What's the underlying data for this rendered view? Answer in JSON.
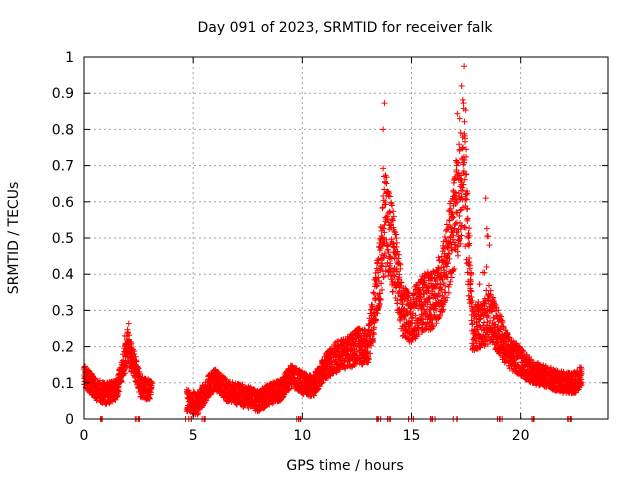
{
  "chart_data": {
    "type": "scatter",
    "title": "Day 091 of 2023, SRMTID for receiver falk",
    "xlabel": "GPS time / hours",
    "ylabel": "SRMTID / TECUs",
    "xlim": [
      0,
      24
    ],
    "ylim": [
      0,
      1
    ],
    "x_ticks": [
      0,
      5,
      10,
      15,
      20
    ],
    "x_tick_labels": [
      "0",
      "5",
      "10",
      "15",
      "20"
    ],
    "y_ticks": [
      0,
      0.1,
      0.2,
      0.3,
      0.4,
      0.5,
      0.6,
      0.7,
      0.8,
      0.9,
      1
    ],
    "y_tick_labels": [
      "0",
      "0.1",
      "0.2",
      "0.3",
      "0.4",
      "0.5",
      "0.6",
      "0.7",
      "0.8",
      "0.9",
      "1"
    ],
    "grid": true,
    "marker": "+",
    "series_color": "#ff0000",
    "series": [
      {
        "name": "SRMTID",
        "approximate_trend": [
          {
            "x": 0.0,
            "y": 0.12
          },
          {
            "x": 0.3,
            "y": 0.1
          },
          {
            "x": 0.6,
            "y": 0.08
          },
          {
            "x": 1.0,
            "y": 0.07
          },
          {
            "x": 1.5,
            "y": 0.08
          },
          {
            "x": 2.0,
            "y": 0.2
          },
          {
            "x": 2.3,
            "y": 0.15
          },
          {
            "x": 2.6,
            "y": 0.09
          },
          {
            "x": 3.0,
            "y": 0.08
          },
          {
            "x": 4.8,
            "y": 0.05
          },
          {
            "x": 5.2,
            "y": 0.04
          },
          {
            "x": 5.7,
            "y": 0.09
          },
          {
            "x": 6.0,
            "y": 0.11
          },
          {
            "x": 6.5,
            "y": 0.08
          },
          {
            "x": 7.0,
            "y": 0.07
          },
          {
            "x": 7.5,
            "y": 0.06
          },
          {
            "x": 8.0,
            "y": 0.05
          },
          {
            "x": 8.5,
            "y": 0.07
          },
          {
            "x": 9.0,
            "y": 0.08
          },
          {
            "x": 9.5,
            "y": 0.12
          },
          {
            "x": 10.0,
            "y": 0.1
          },
          {
            "x": 10.5,
            "y": 0.09
          },
          {
            "x": 11.0,
            "y": 0.14
          },
          {
            "x": 11.5,
            "y": 0.17
          },
          {
            "x": 12.0,
            "y": 0.18
          },
          {
            "x": 12.5,
            "y": 0.2
          },
          {
            "x": 13.0,
            "y": 0.2
          },
          {
            "x": 13.5,
            "y": 0.38
          },
          {
            "x": 13.8,
            "y": 0.55
          },
          {
            "x": 14.2,
            "y": 0.45
          },
          {
            "x": 14.6,
            "y": 0.3
          },
          {
            "x": 15.0,
            "y": 0.28
          },
          {
            "x": 15.5,
            "y": 0.32
          },
          {
            "x": 16.0,
            "y": 0.33
          },
          {
            "x": 16.5,
            "y": 0.4
          },
          {
            "x": 17.0,
            "y": 0.55
          },
          {
            "x": 17.4,
            "y": 0.7
          },
          {
            "x": 17.8,
            "y": 0.25
          },
          {
            "x": 18.2,
            "y": 0.26
          },
          {
            "x": 18.6,
            "y": 0.28
          },
          {
            "x": 19.0,
            "y": 0.24
          },
          {
            "x": 19.5,
            "y": 0.18
          },
          {
            "x": 20.0,
            "y": 0.16
          },
          {
            "x": 20.5,
            "y": 0.13
          },
          {
            "x": 21.0,
            "y": 0.12
          },
          {
            "x": 21.5,
            "y": 0.11
          },
          {
            "x": 22.0,
            "y": 0.1
          },
          {
            "x": 22.5,
            "y": 0.1
          },
          {
            "x": 22.8,
            "y": 0.12
          }
        ],
        "peaks": [
          {
            "x": 2.0,
            "y": 0.24
          },
          {
            "x": 13.7,
            "y": 0.8
          },
          {
            "x": 17.3,
            "y": 0.92
          },
          {
            "x": 18.4,
            "y": 0.61
          }
        ],
        "gaps": [
          [
            3.1,
            4.7
          ]
        ],
        "zero_clusters": [
          0.7,
          2.5,
          4.8,
          5.5,
          9.8,
          13.5,
          14.0,
          15.0,
          16.0,
          17.0,
          19.0,
          20.5,
          22.3
        ]
      }
    ]
  }
}
